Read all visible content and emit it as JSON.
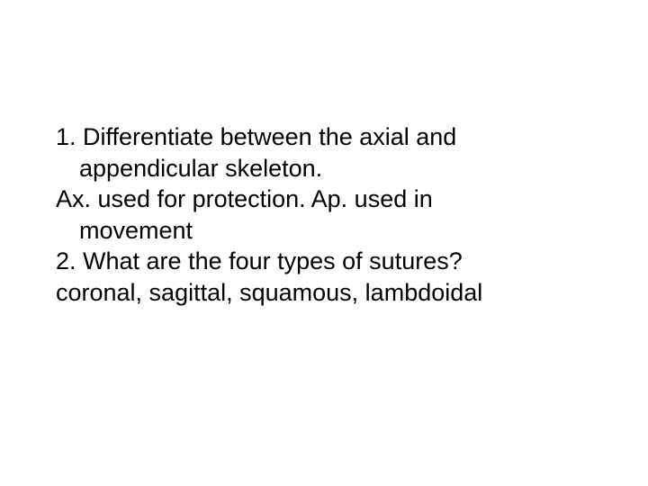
{
  "document": {
    "lines": [
      "1. Differentiate between the axial and",
      "appendicular skeleton.",
      "Ax. used for protection. Ap. used in",
      "movement",
      "2. What are the four types of sutures?",
      "coronal, sagittal, squamous, lambdoidal"
    ],
    "font_size": 27,
    "font_family": "Arial",
    "text_color": "#000000",
    "background_color": "#ffffff",
    "line_height": 1.28
  }
}
